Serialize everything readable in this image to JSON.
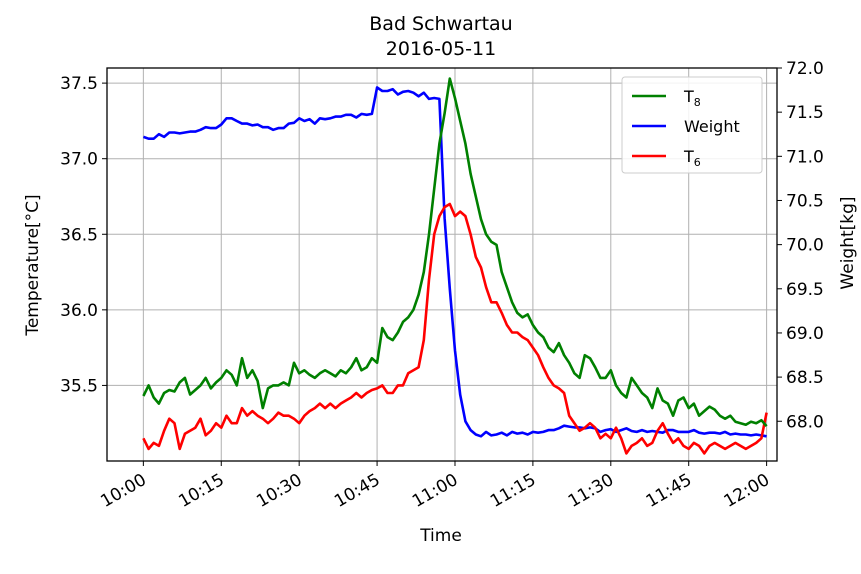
{
  "chart_data": {
    "type": "line",
    "title": "Bad Schwartau",
    "subtitle": "2016-05-11",
    "xlabel": "Time",
    "ylabel_left": "Temperature[°C]",
    "ylabel_right": "Weight[kg]",
    "x_ticks": [
      "10:00",
      "10:15",
      "10:30",
      "10:45",
      "11:00",
      "11:15",
      "11:30",
      "11:45",
      "12:00"
    ],
    "x_range_minutes": [
      -7,
      122
    ],
    "y_left_ticks": [
      "35.5",
      "36.0",
      "36.5",
      "37.0",
      "37.5"
    ],
    "y_left_range": [
      35.0,
      37.6
    ],
    "y_right_ticks": [
      "68.0",
      "68.5",
      "69.0",
      "69.5",
      "70.0",
      "70.5",
      "71.0",
      "71.5",
      "72.0"
    ],
    "y_right_range": [
      67.55,
      72.0
    ],
    "grid": true,
    "legend_position": "top-right",
    "legend": [
      {
        "base": "T",
        "sub": "8",
        "color": "#008000"
      },
      {
        "base": "Weight",
        "sub": "",
        "color": "#0000ff"
      },
      {
        "base": "T",
        "sub": "6",
        "color": "#ff0000"
      }
    ],
    "series": [
      {
        "name": "T8",
        "axis": "left",
        "color": "#008000",
        "x": [
          0,
          1,
          2,
          3,
          4,
          5,
          6,
          7,
          8,
          9,
          10,
          11,
          12,
          13,
          14,
          15,
          16,
          17,
          18,
          19,
          20,
          21,
          22,
          23,
          24,
          25,
          26,
          27,
          28,
          29,
          30,
          31,
          32,
          33,
          34,
          35,
          36,
          37,
          38,
          39,
          40,
          41,
          42,
          43,
          44,
          45,
          46,
          47,
          48,
          49,
          50,
          51,
          52,
          53,
          54,
          55,
          56,
          57,
          58,
          59,
          60,
          61,
          62,
          63,
          64,
          65,
          66,
          67,
          68,
          69,
          70,
          71,
          72,
          73,
          74,
          75,
          76,
          77,
          78,
          79,
          80,
          81,
          82,
          83,
          84,
          85,
          86,
          87,
          88,
          89,
          90,
          91,
          92,
          93,
          94,
          95,
          96,
          97,
          98,
          99,
          100,
          101,
          102,
          103,
          104,
          105,
          106,
          107,
          108,
          109,
          110,
          111,
          112,
          113,
          114,
          115,
          116,
          117,
          118,
          119,
          120
        ],
        "values": [
          35.43,
          35.5,
          35.42,
          35.38,
          35.45,
          35.47,
          35.46,
          35.52,
          35.55,
          35.44,
          35.47,
          35.5,
          35.55,
          35.48,
          35.52,
          35.55,
          35.6,
          35.57,
          35.5,
          35.68,
          35.55,
          35.6,
          35.53,
          35.35,
          35.48,
          35.5,
          35.5,
          35.52,
          35.5,
          35.65,
          35.58,
          35.6,
          35.57,
          35.55,
          35.58,
          35.6,
          35.58,
          35.56,
          35.6,
          35.58,
          35.62,
          35.68,
          35.6,
          35.62,
          35.68,
          35.65,
          35.88,
          35.82,
          35.8,
          35.85,
          35.92,
          35.95,
          36.0,
          36.1,
          36.25,
          36.5,
          36.8,
          37.1,
          37.3,
          37.53,
          37.4,
          37.25,
          37.1,
          36.9,
          36.75,
          36.6,
          36.5,
          36.45,
          36.43,
          36.25,
          36.15,
          36.05,
          35.98,
          35.95,
          35.97,
          35.9,
          35.85,
          35.82,
          35.75,
          35.72,
          35.78,
          35.7,
          35.65,
          35.58,
          35.55,
          35.7,
          35.68,
          35.62,
          35.55,
          35.55,
          35.6,
          35.5,
          35.45,
          35.42,
          35.55,
          35.5,
          35.45,
          35.42,
          35.35,
          35.48,
          35.4,
          35.38,
          35.3,
          35.4,
          35.42,
          35.35,
          35.38,
          35.3,
          35.33,
          35.36,
          35.34,
          35.3,
          35.28,
          35.3,
          35.26,
          35.25,
          35.24,
          35.26,
          35.25,
          35.27,
          35.23
        ]
      },
      {
        "name": "Weight",
        "axis": "right",
        "color": "#0000ff",
        "x": [
          0,
          1,
          2,
          3,
          4,
          5,
          6,
          7,
          8,
          9,
          10,
          11,
          12,
          13,
          14,
          15,
          16,
          17,
          18,
          19,
          20,
          21,
          22,
          23,
          24,
          25,
          26,
          27,
          28,
          29,
          30,
          31,
          32,
          33,
          34,
          35,
          36,
          37,
          38,
          39,
          40,
          41,
          42,
          43,
          44,
          45,
          46,
          47,
          48,
          49,
          50,
          51,
          52,
          53,
          54,
          55,
          56,
          57,
          58,
          59,
          60,
          61,
          62,
          63,
          64,
          65,
          66,
          67,
          68,
          69,
          70,
          71,
          72,
          73,
          74,
          75,
          76,
          77,
          78,
          79,
          80,
          81,
          82,
          83,
          84,
          85,
          86,
          87,
          88,
          89,
          90,
          91,
          92,
          93,
          94,
          95,
          96,
          97,
          98,
          99,
          100,
          101,
          102,
          103,
          104,
          105,
          106,
          107,
          108,
          109,
          110,
          111,
          112,
          113,
          114,
          115,
          116,
          117,
          118,
          119,
          120
        ],
        "values": [
          71.22,
          71.2,
          71.2,
          71.25,
          71.22,
          71.27,
          71.27,
          71.26,
          71.27,
          71.28,
          71.28,
          71.3,
          71.33,
          71.32,
          71.32,
          71.36,
          71.43,
          71.43,
          71.4,
          71.37,
          71.37,
          71.35,
          71.36,
          71.33,
          71.33,
          71.3,
          71.32,
          71.32,
          71.37,
          71.38,
          71.43,
          71.4,
          71.42,
          71.37,
          71.43,
          71.42,
          71.43,
          71.45,
          71.45,
          71.47,
          71.47,
          71.44,
          71.48,
          71.47,
          71.48,
          71.78,
          71.74,
          71.74,
          71.76,
          71.7,
          71.73,
          71.74,
          71.72,
          71.68,
          71.72,
          71.65,
          71.66,
          71.65,
          70.3,
          69.5,
          68.8,
          68.3,
          68.0,
          67.9,
          67.85,
          67.83,
          67.88,
          67.84,
          67.85,
          67.87,
          67.84,
          67.88,
          67.86,
          67.87,
          67.85,
          67.88,
          67.87,
          67.88,
          67.9,
          67.9,
          67.92,
          67.95,
          67.94,
          67.93,
          67.93,
          67.92,
          67.93,
          67.92,
          67.88,
          67.9,
          67.91,
          67.88,
          67.9,
          67.92,
          67.89,
          67.88,
          67.9,
          67.88,
          67.89,
          67.88,
          67.87,
          67.9,
          67.9,
          67.88,
          67.88,
          67.88,
          67.9,
          67.87,
          67.86,
          67.87,
          67.87,
          67.86,
          67.88,
          67.85,
          67.86,
          67.85,
          67.85,
          67.84,
          67.85,
          67.84,
          67.83
        ]
      },
      {
        "name": "T6",
        "axis": "left",
        "color": "#ff0000",
        "x": [
          0,
          1,
          2,
          3,
          4,
          5,
          6,
          7,
          8,
          9,
          10,
          11,
          12,
          13,
          14,
          15,
          16,
          17,
          18,
          19,
          20,
          21,
          22,
          23,
          24,
          25,
          26,
          27,
          28,
          29,
          30,
          31,
          32,
          33,
          34,
          35,
          36,
          37,
          38,
          39,
          40,
          41,
          42,
          43,
          44,
          45,
          46,
          47,
          48,
          49,
          50,
          51,
          52,
          53,
          54,
          55,
          56,
          57,
          58,
          59,
          60,
          61,
          62,
          63,
          64,
          65,
          66,
          67,
          68,
          69,
          70,
          71,
          72,
          73,
          74,
          75,
          76,
          77,
          78,
          79,
          80,
          81,
          82,
          83,
          84,
          85,
          86,
          87,
          88,
          89,
          90,
          91,
          92,
          93,
          94,
          95,
          96,
          97,
          98,
          99,
          100,
          101,
          102,
          103,
          104,
          105,
          106,
          107,
          108,
          109,
          110,
          111,
          112,
          113,
          114,
          115,
          116,
          117,
          118,
          119,
          120
        ],
        "values": [
          35.15,
          35.08,
          35.12,
          35.1,
          35.2,
          35.28,
          35.25,
          35.08,
          35.18,
          35.2,
          35.22,
          35.28,
          35.17,
          35.2,
          35.25,
          35.22,
          35.3,
          35.25,
          35.25,
          35.35,
          35.3,
          35.33,
          35.3,
          35.28,
          35.25,
          35.28,
          35.32,
          35.3,
          35.3,
          35.28,
          35.25,
          35.3,
          35.33,
          35.35,
          35.38,
          35.35,
          35.38,
          35.35,
          35.38,
          35.4,
          35.42,
          35.45,
          35.42,
          35.45,
          35.47,
          35.48,
          35.5,
          35.45,
          35.45,
          35.5,
          35.5,
          35.58,
          35.6,
          35.62,
          35.8,
          36.2,
          36.5,
          36.62,
          36.68,
          36.7,
          36.62,
          36.65,
          36.62,
          36.5,
          36.35,
          36.28,
          36.15,
          36.05,
          36.05,
          35.98,
          35.9,
          35.85,
          35.85,
          35.82,
          35.8,
          35.75,
          35.7,
          35.62,
          35.55,
          35.5,
          35.48,
          35.45,
          35.3,
          35.25,
          35.2,
          35.22,
          35.25,
          35.22,
          35.15,
          35.18,
          35.15,
          35.22,
          35.15,
          35.05,
          35.1,
          35.12,
          35.15,
          35.1,
          35.12,
          35.2,
          35.25,
          35.18,
          35.12,
          35.15,
          35.1,
          35.08,
          35.12,
          35.1,
          35.05,
          35.1,
          35.12,
          35.1,
          35.08,
          35.1,
          35.12,
          35.1,
          35.08,
          35.1,
          35.12,
          35.15,
          35.32
        ]
      }
    ]
  }
}
